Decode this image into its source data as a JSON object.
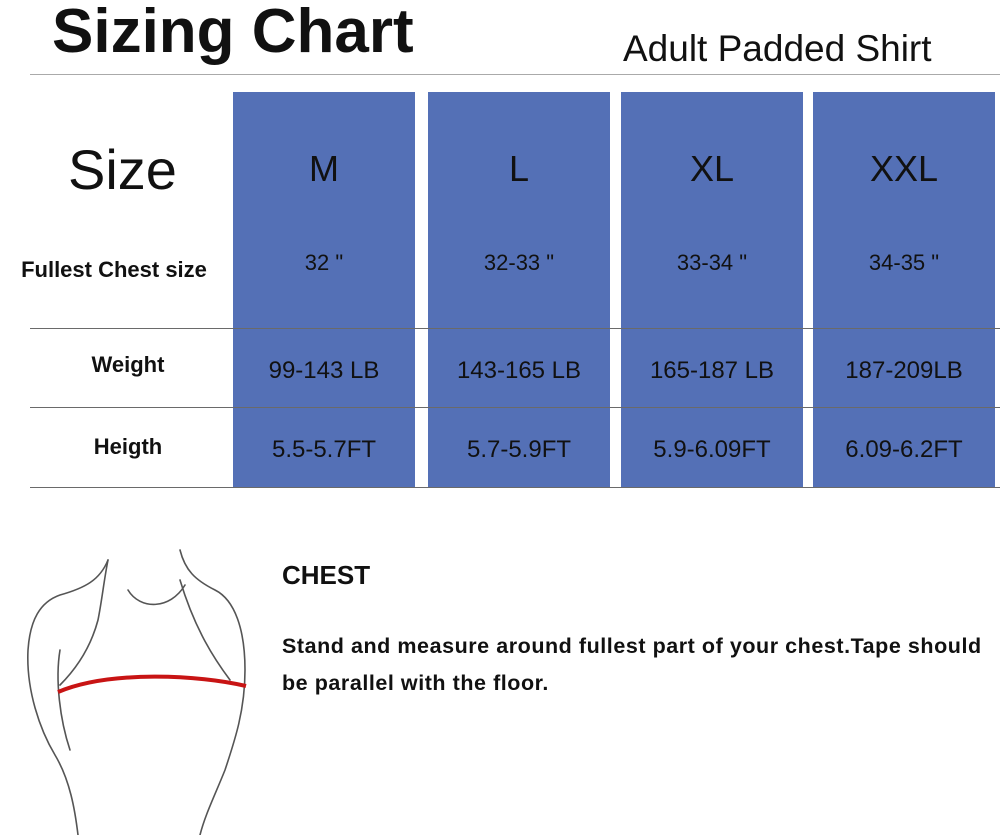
{
  "header": {
    "title": "Sizing Chart",
    "subtitle": "Adult Padded Shirt"
  },
  "table": {
    "corner": "Size",
    "columns": [
      "M",
      "L",
      "XL",
      "XXL"
    ],
    "rows": [
      {
        "label": "Fullest Chest size",
        "cells": [
          "32 \"",
          "32-33 \"",
          "33-34 \"",
          "34-35 \""
        ]
      },
      {
        "label": "Weight",
        "cells": [
          "99-143 LB",
          "143-165 LB",
          "165-187 LB",
          "187-209LB"
        ]
      },
      {
        "label": "Heigth",
        "cells": [
          "5.5-5.7FT",
          "5.7-5.9FT",
          "5.9-6.09FT",
          "6.09-6.2FT"
        ]
      }
    ]
  },
  "instruction": {
    "title": "CHEST",
    "text": "Stand and measure around fullest part of your chest.Tape should be parallel with the floor."
  }
}
